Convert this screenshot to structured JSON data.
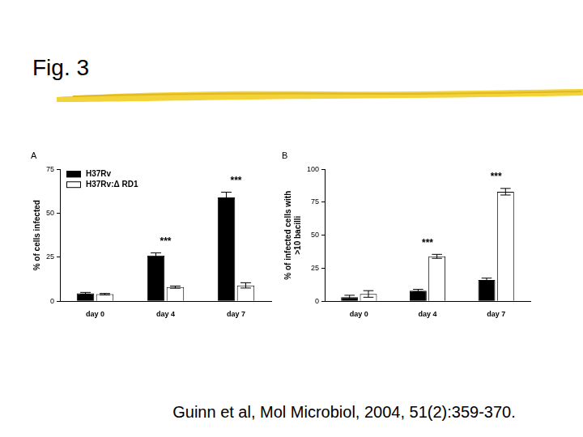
{
  "slide": {
    "title": "Fig. 3",
    "source": "Guinn et al, Mol Microbiol, 2004, 51(2):359-370."
  },
  "chart_data": [
    {
      "type": "bar",
      "title": "A",
      "categories": [
        "day 0",
        "day 4",
        "day 7"
      ],
      "y_label": "% of cells infected",
      "ylim": [
        0,
        75
      ],
      "yticks": [
        0,
        25,
        50,
        75
      ],
      "grid": false,
      "legend": "upper left",
      "series": [
        {
          "name": "H37Rv",
          "color": "#000000",
          "values": [
            4.5,
            26,
            59
          ],
          "errors": [
            0.5,
            1.5,
            3
          ]
        },
        {
          "name": "H37Rv:Δ RD1",
          "color": "#ffffff",
          "values": [
            4,
            8,
            9
          ],
          "errors": [
            0.4,
            0.6,
            1.5
          ]
        }
      ],
      "annotations": [
        {
          "category": "day 4",
          "text": "***"
        },
        {
          "category": "day 7",
          "text": "***"
        }
      ]
    },
    {
      "type": "bar",
      "title": "B",
      "categories": [
        "day 0",
        "day 4",
        "day 7"
      ],
      "y_label": [
        "% of infected cells with",
        ">10 bacilli"
      ],
      "ylim": [
        0,
        100
      ],
      "yticks": [
        0,
        25,
        50,
        75,
        100
      ],
      "grid": false,
      "series": [
        {
          "color": "#000000",
          "values": [
            3,
            8,
            16
          ],
          "errors": [
            1.5,
            1,
            1.5
          ]
        },
        {
          "color": "#ffffff",
          "values": [
            5.5,
            34,
            83
          ],
          "errors": [
            2.5,
            1.5,
            2.5
          ]
        }
      ],
      "annotations": [
        {
          "category": "day 4",
          "text": "***"
        },
        {
          "category": "day 7",
          "text": "***"
        }
      ]
    }
  ]
}
